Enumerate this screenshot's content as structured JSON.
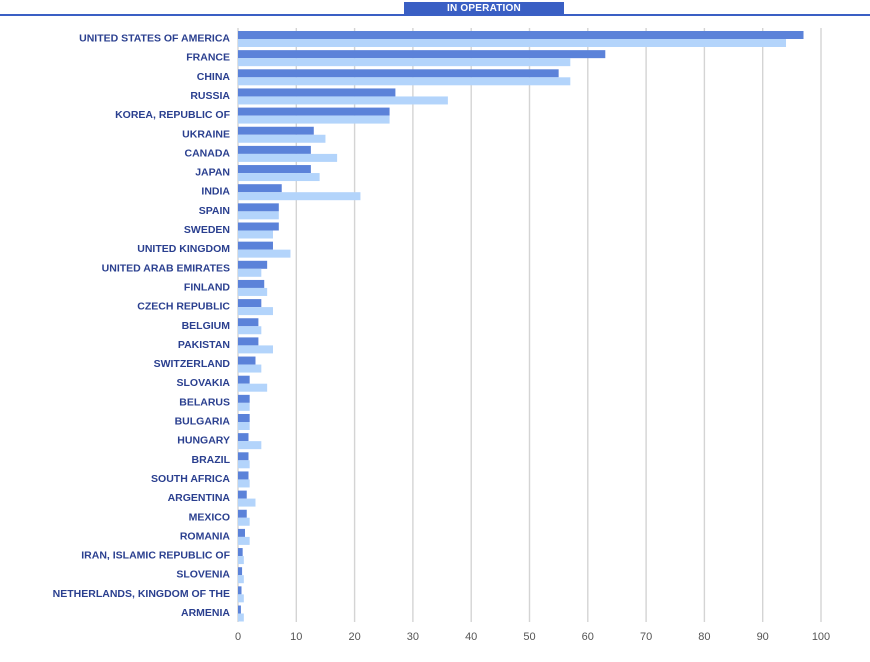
{
  "tab": {
    "label": "IN OPERATION"
  },
  "colors": {
    "series1": "#5b82d9",
    "series2": "#b3d4fb",
    "grid": "#d4d4d4",
    "accent": "#3a5fc4"
  },
  "chart_data": {
    "type": "bar",
    "orientation": "horizontal",
    "title": "",
    "xlabel": "",
    "ylabel": "",
    "xlim": [
      0,
      100
    ],
    "ticks": [
      0,
      10,
      20,
      30,
      40,
      50,
      60,
      70,
      80,
      90,
      100
    ],
    "grid": true,
    "legend": false,
    "categories": [
      "UNITED STATES OF AMERICA",
      "FRANCE",
      "CHINA",
      "RUSSIA",
      "KOREA, REPUBLIC OF",
      "UKRAINE",
      "CANADA",
      "JAPAN",
      "INDIA",
      "SPAIN",
      "SWEDEN",
      "UNITED KINGDOM",
      "UNITED ARAB EMIRATES",
      "FINLAND",
      "CZECH REPUBLIC",
      "BELGIUM",
      "PAKISTAN",
      "SWITZERLAND",
      "SLOVAKIA",
      "BELARUS",
      "BULGARIA",
      "HUNGARY",
      "BRAZIL",
      "SOUTH AFRICA",
      "ARGENTINA",
      "MEXICO",
      "ROMANIA",
      "IRAN, ISLAMIC REPUBLIC OF",
      "SLOVENIA",
      "NETHERLANDS, KINGDOM OF THE",
      "ARMENIA"
    ],
    "series": [
      {
        "values": [
          97,
          63,
          55,
          27,
          26,
          13,
          12.5,
          12.5,
          7.5,
          7,
          7,
          6,
          5,
          4.5,
          4,
          3.5,
          3.5,
          3,
          2,
          2,
          2,
          1.8,
          1.8,
          1.8,
          1.5,
          1.5,
          1.2,
          0.8,
          0.7,
          0.6,
          0.5
        ]
      },
      {
        "values": [
          94,
          57,
          57,
          36,
          26,
          15,
          17,
          14,
          21,
          7,
          6,
          9,
          4,
          5,
          6,
          4,
          6,
          4,
          5,
          2,
          2,
          4,
          2,
          2,
          3,
          2,
          2,
          1,
          1,
          1,
          1
        ]
      }
    ]
  }
}
